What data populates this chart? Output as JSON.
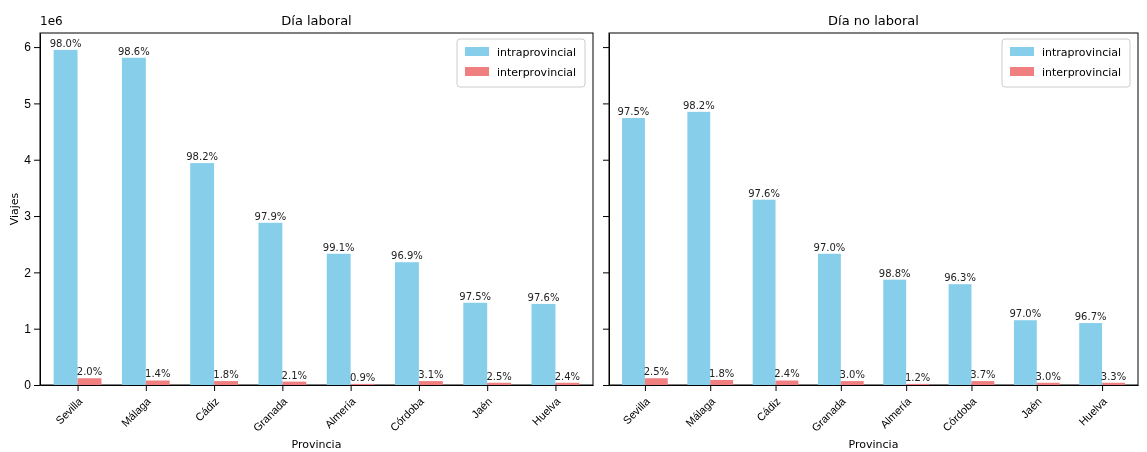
{
  "chart_data": [
    {
      "type": "bar",
      "title": "Día laboral",
      "xlabel": "Provincia",
      "ylabel": "Viajes",
      "categories": [
        "Sevilla",
        "Málaga",
        "Cádiz",
        "Granada",
        "Almería",
        "Córdoba",
        "Jaén",
        "Huelva"
      ],
      "series": [
        {
          "name": "intraprovincial",
          "color": "#87ceeb",
          "values": [
            5.95,
            5.81,
            3.94,
            2.88,
            2.33,
            2.18,
            1.46,
            1.44
          ]
        },
        {
          "name": "interprovincial",
          "color": "#f08080",
          "values": [
            0.12,
            0.08,
            0.07,
            0.06,
            0.02,
            0.07,
            0.04,
            0.04
          ]
        }
      ],
      "ylim": [
        0,
        6.25
      ],
      "yticks": [
        0,
        1,
        2,
        3,
        4,
        5,
        6
      ],
      "annotations": [
        "1e6",
        {
          "text": "98.0%",
          "x": "Sevilla",
          "y": 5.95
        },
        {
          "text": "98.6%",
          "x": "Málaga",
          "y": 5.81
        },
        {
          "text": "98.2%",
          "x": "Cádiz",
          "y": 3.94
        },
        {
          "text": "97.9%",
          "x": "Granada",
          "y": 2.88
        },
        {
          "text": "99.1%",
          "x": "Almería",
          "y": 2.33
        },
        {
          "text": "96.9%",
          "x": "Córdoba",
          "y": 2.18
        },
        {
          "text": "97.5%",
          "x": "Jaén",
          "y": 1.46
        },
        {
          "text": "97.6%",
          "x": "Huelva",
          "y": 1.44
        },
        {
          "text": "2.0%",
          "x": "Sevilla",
          "y": 0.12
        },
        {
          "text": "1.4%",
          "x": "Málaga",
          "y": 0.08
        },
        {
          "text": "1.8%",
          "x": "Cádiz",
          "y": 0.07
        },
        {
          "text": "2.1%",
          "x": "Granada",
          "y": 0.06
        },
        {
          "text": "0.9%",
          "x": "Almería",
          "y": 0.02
        },
        {
          "text": "3.1%",
          "x": "Córdoba",
          "y": 0.07
        },
        {
          "text": "2.5%",
          "x": "Jaén",
          "y": 0.04
        },
        {
          "text": "2.4%",
          "x": "Huelva",
          "y": 0.04
        }
      ],
      "legend": "top right"
    },
    {
      "type": "bar",
      "title": "Día no laboral",
      "xlabel": "Provincia",
      "categories": [
        "Sevilla",
        "Málaga",
        "Cádiz",
        "Granada",
        "Almería",
        "Córdoba",
        "Jaén",
        "Huelva"
      ],
      "series": [
        {
          "name": "intraprovincial",
          "color": "#87ceeb",
          "values": [
            4.74,
            4.85,
            3.29,
            2.33,
            1.87,
            1.79,
            1.15,
            1.1
          ]
        },
        {
          "name": "interprovincial",
          "color": "#f08080",
          "values": [
            0.12,
            0.09,
            0.08,
            0.07,
            0.02,
            0.07,
            0.04,
            0.04
          ]
        }
      ],
      "ylim": [
        0,
        6.25
      ],
      "yticks": [
        0,
        1,
        2,
        3,
        4,
        5,
        6
      ],
      "annotations": [
        {
          "text": "97.5%",
          "x": "Sevilla",
          "y": 4.74
        },
        {
          "text": "98.2%",
          "x": "Málaga",
          "y": 4.85
        },
        {
          "text": "97.6%",
          "x": "Cádiz",
          "y": 3.29
        },
        {
          "text": "97.0%",
          "x": "Granada",
          "y": 2.33
        },
        {
          "text": "98.8%",
          "x": "Almería",
          "y": 1.87
        },
        {
          "text": "96.3%",
          "x": "Córdoba",
          "y": 1.79
        },
        {
          "text": "97.0%",
          "x": "Jaén",
          "y": 1.15
        },
        {
          "text": "96.7%",
          "x": "Huelva",
          "y": 1.1
        },
        {
          "text": "2.5%",
          "x": "Sevilla",
          "y": 0.12
        },
        {
          "text": "1.8%",
          "x": "Málaga",
          "y": 0.09
        },
        {
          "text": "2.4%",
          "x": "Cádiz",
          "y": 0.08
        },
        {
          "text": "3.0%",
          "x": "Granada",
          "y": 0.07
        },
        {
          "text": "1.2%",
          "x": "Almería",
          "y": 0.02
        },
        {
          "text": "3.7%",
          "x": "Córdoba",
          "y": 0.07
        },
        {
          "text": "3.0%",
          "x": "Jaén",
          "y": 0.04
        },
        {
          "text": "3.3%",
          "x": "Huelva",
          "y": 0.04
        }
      ],
      "tick_labels": "x",
      "legend": "top right"
    }
  ]
}
